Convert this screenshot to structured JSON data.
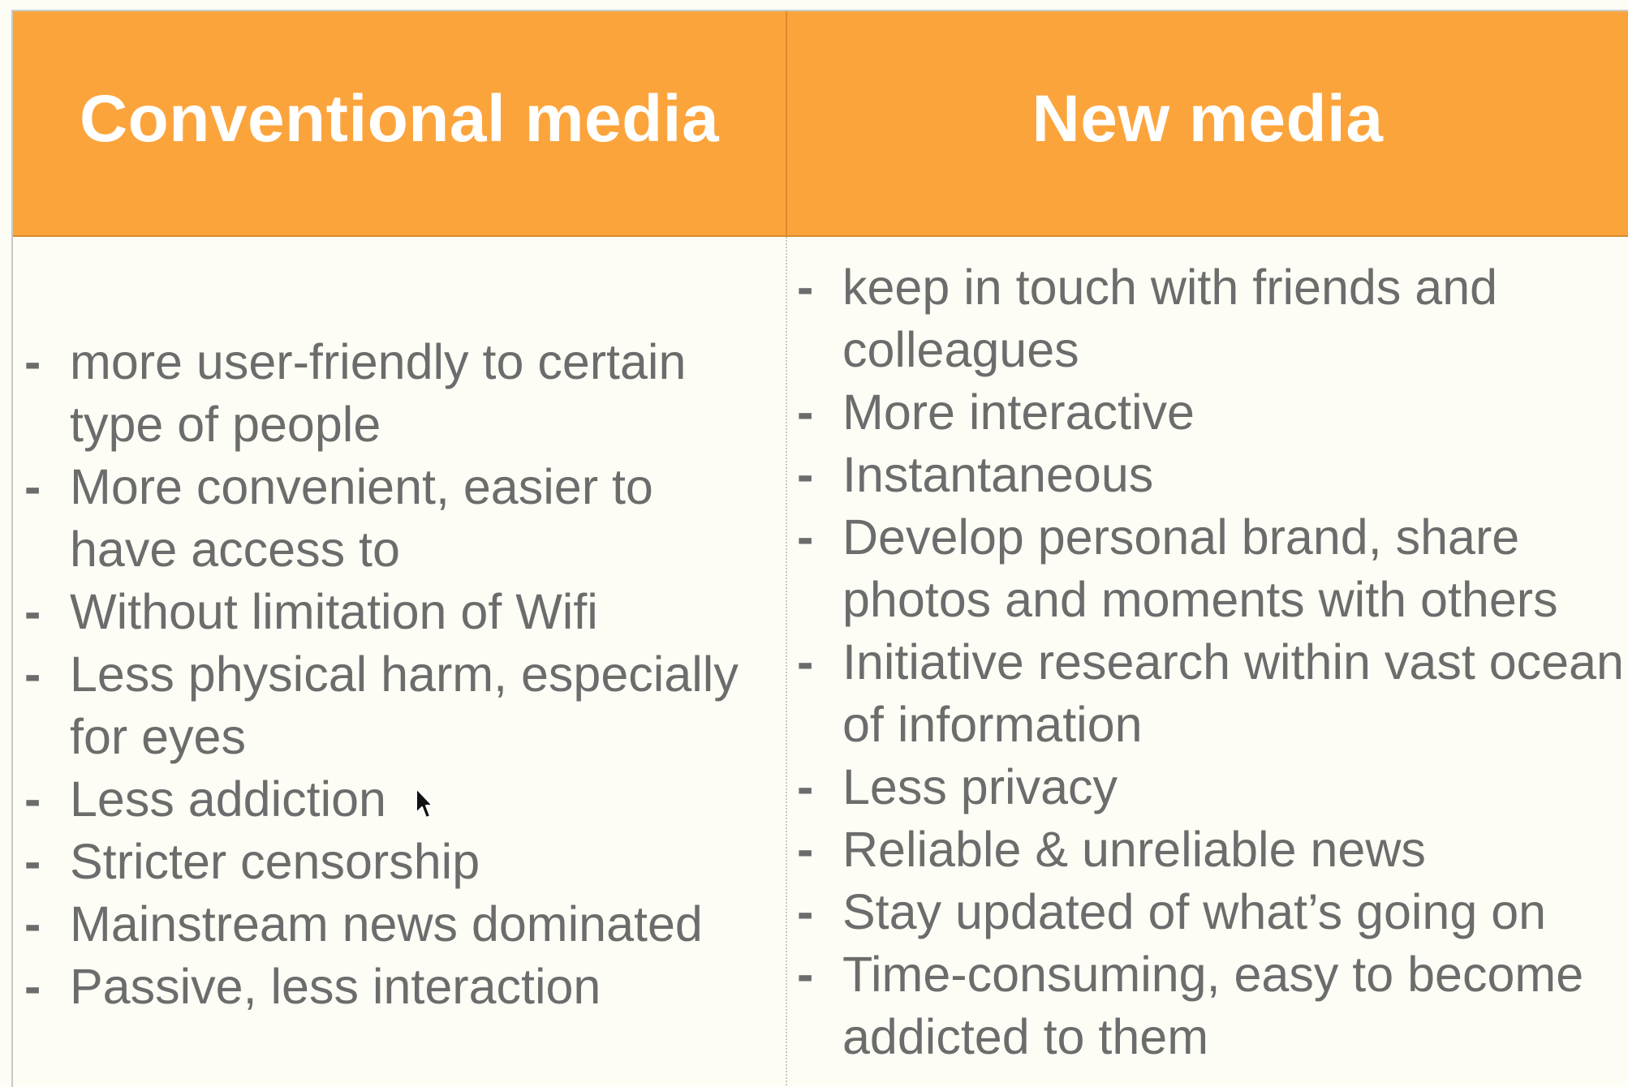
{
  "table": {
    "headers": {
      "left": "Conventional media",
      "right": "New media"
    },
    "bullet": "-",
    "left_items": [
      "more user-friendly to certain type of people",
      "More convenient, easier to have access to",
      "Without limitation of Wifi",
      "Less physical harm, especially for eyes",
      "Less addiction",
      "Stricter censorship",
      "Mainstream news dominated",
      "Passive, less interaction"
    ],
    "right_items": [
      "keep in touch with friends and colleagues",
      "More interactive",
      "Instantaneous",
      "Develop personal brand, share photos and moments with others",
      "Initiative research within vast ocean of information",
      "Less privacy",
      "Reliable & unreliable news",
      "Stay updated of what’s going on",
      "Time-consuming, easy to become addicted to them"
    ]
  },
  "colors": {
    "header_bg": "#fca43c",
    "header_text": "#ffffff",
    "body_bg": "#fdfdf6",
    "body_text": "#6c6c6c"
  },
  "icons": {
    "cursor": "mouse-pointer-icon"
  }
}
